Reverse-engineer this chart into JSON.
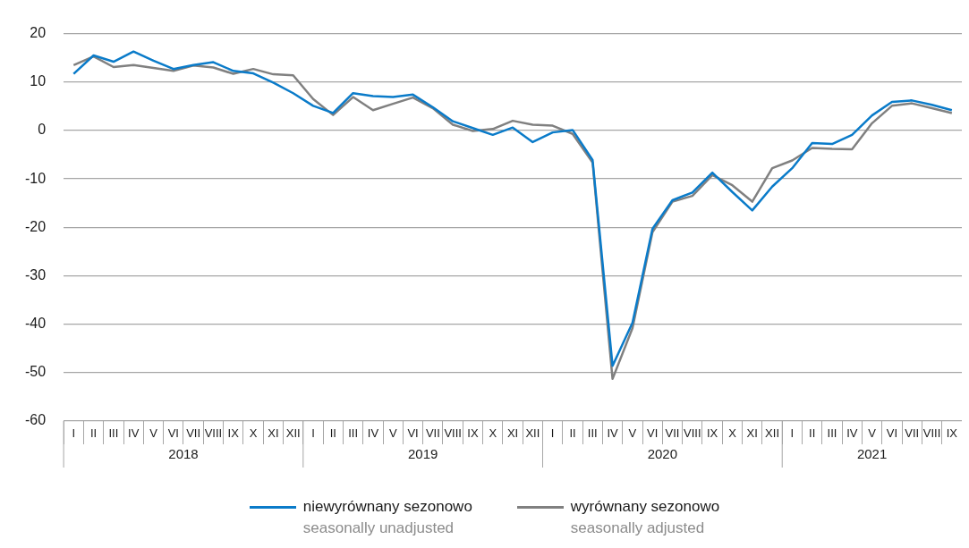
{
  "chart_data": {
    "type": "line",
    "categories": [
      "I",
      "II",
      "III",
      "IV",
      "V",
      "VI",
      "VII",
      "VIII",
      "IX",
      "X",
      "XI",
      "XII",
      "I",
      "II",
      "III",
      "IV",
      "V",
      "VI",
      "VII",
      "VIII",
      "IX",
      "X",
      "XI",
      "XII",
      "I",
      "II",
      "III",
      "IV",
      "V",
      "VI",
      "VII",
      "VIII",
      "IX",
      "X",
      "XI",
      "XII",
      "I",
      "II",
      "III",
      "IV",
      "V",
      "VI",
      "VII",
      "VIII",
      "IX"
    ],
    "series": [
      {
        "name": "niewyrównany sezonowo\nseasonally unadjusted",
        "color": "#0a7bc9",
        "values": [
          11.7,
          15.5,
          14.2,
          16.3,
          14.4,
          12.7,
          13.5,
          14.1,
          12.3,
          11.8,
          9.9,
          7.7,
          5.1,
          3.6,
          7.7,
          7.1,
          6.9,
          7.4,
          4.8,
          1.9,
          0.5,
          -0.9,
          0.6,
          -2.4,
          -0.4,
          0.1,
          -6.1,
          -48.6,
          -39.7,
          -20.3,
          -14.4,
          -12.8,
          -8.7,
          -12.7,
          -16.5,
          -11.6,
          -7.8,
          -2.6,
          -2.8,
          -0.9,
          3.1,
          5.9,
          6.2,
          5.3,
          4.2
        ]
      },
      {
        "name": "wyrównany sezonowo\nseasonally adjusted",
        "color": "#808080",
        "values": [
          13.5,
          15.3,
          13.1,
          13.5,
          12.9,
          12.3,
          13.4,
          13.0,
          11.7,
          12.7,
          11.6,
          11.4,
          6.5,
          3.2,
          6.9,
          4.2,
          5.5,
          6.8,
          4.6,
          1.2,
          -0.1,
          0.3,
          2.0,
          1.2,
          1.0,
          -0.7,
          -6.6,
          -51.3,
          -40.8,
          -21.0,
          -14.7,
          -13.5,
          -9.2,
          -11.3,
          -14.7,
          -7.8,
          -6.2,
          -3.6,
          -3.8,
          -3.9,
          1.5,
          5.1,
          5.6,
          4.6,
          3.6
        ]
      }
    ],
    "annotations": [
      "2018",
      "2019",
      "2020",
      "2021"
    ],
    "ylim": [
      -60,
      20
    ],
    "yticks": [
      -60,
      -50,
      -40,
      -30,
      -20,
      -10,
      0,
      10,
      20
    ],
    "grid": "y",
    "legend": "bottom",
    "marker": "none",
    "line_style": "solid"
  }
}
